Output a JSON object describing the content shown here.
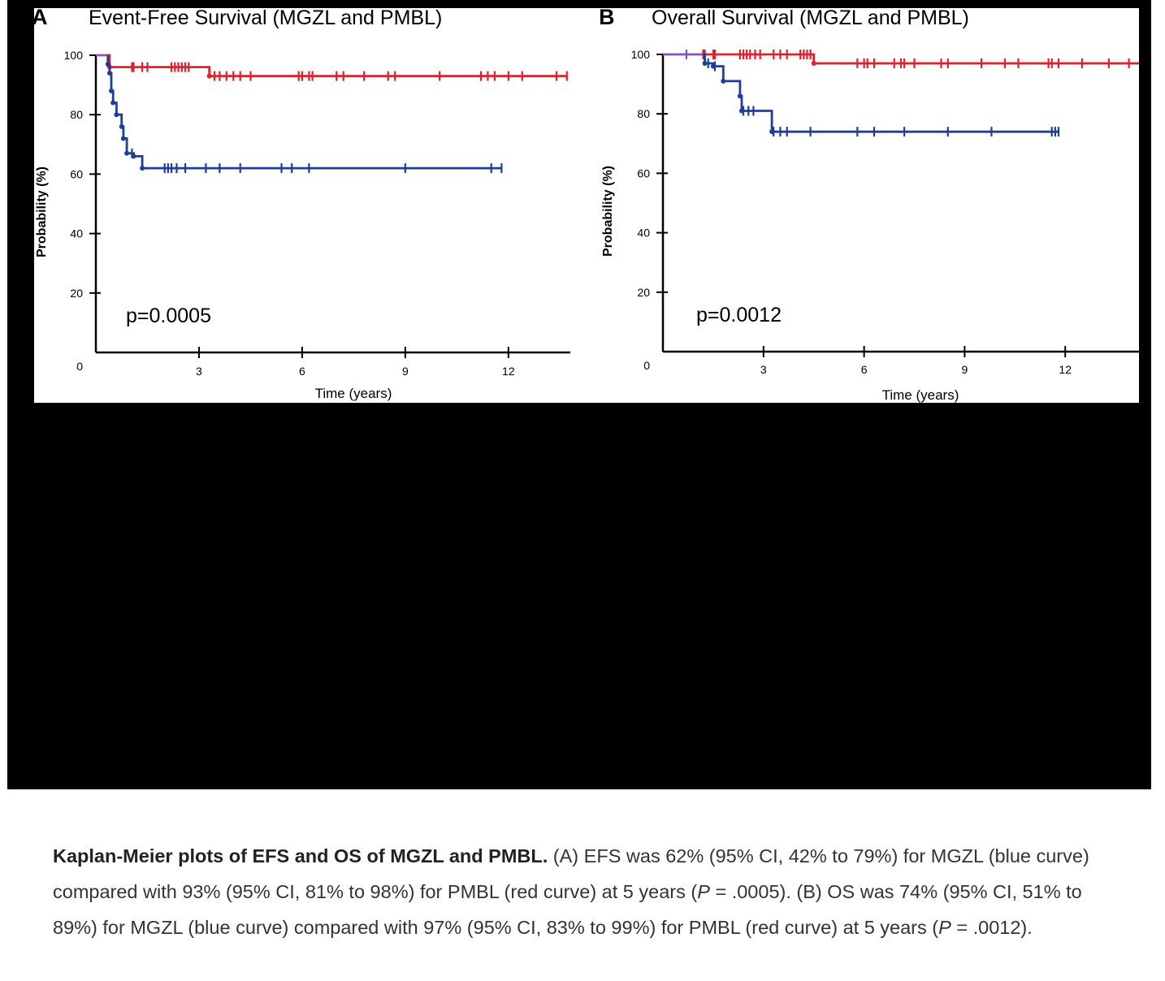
{
  "figure": {
    "background": "#000000",
    "colors": {
      "pmbl": "#e0212c",
      "mgzl": "#1f3d99",
      "combined": "#8a4fb8",
      "axis": "#000000"
    }
  },
  "chart_data": [
    {
      "type": "line",
      "panel_letter": "A",
      "title": "Event-Free Survival (MGZL and PMBL)",
      "xlabel": "Time (years)",
      "ylabel": "Probability (%)",
      "xlim": [
        0,
        13.8
      ],
      "ylim": [
        0,
        100
      ],
      "xticks": [
        3,
        6,
        9,
        12
      ],
      "yticks": [
        0,
        20,
        40,
        60,
        80,
        100
      ],
      "x_tick_labels": [
        "3",
        "6",
        "9",
        "12"
      ],
      "y_tick_labels": [
        "0",
        "20",
        "40",
        "60",
        "80",
        "100"
      ],
      "annotation": "p=0.0005",
      "step_plot": true,
      "series": [
        {
          "color": "#8a4fb8",
          "points": [
            [
              0,
              100
            ],
            [
              0.4,
              100
            ]
          ],
          "censored": []
        },
        {
          "color": "#e0212c",
          "points": [
            [
              0.35,
              100
            ],
            [
              0.4,
              96
            ],
            [
              3.3,
              96
            ],
            [
              3.3,
              93
            ],
            [
              13.7,
              93
            ]
          ],
          "censored": [
            1.05,
            1.1,
            1.35,
            1.5,
            2.2,
            2.3,
            2.4,
            2.5,
            2.6,
            2.7,
            3.45,
            3.6,
            3.8,
            4.0,
            4.2,
            4.5,
            5.9,
            6.0,
            6.2,
            6.3,
            7.0,
            7.2,
            7.8,
            8.5,
            8.7,
            10.0,
            11.2,
            11.4,
            11.6,
            12.0,
            12.4,
            13.4,
            13.7
          ]
        },
        {
          "color": "#1f3d99",
          "points": [
            [
              0.35,
              100
            ],
            [
              0.35,
              97
            ],
            [
              0.4,
              94
            ],
            [
              0.45,
              88
            ],
            [
              0.5,
              84
            ],
            [
              0.6,
              80
            ],
            [
              0.75,
              76
            ],
            [
              0.8,
              72
            ],
            [
              0.9,
              67
            ],
            [
              1.1,
              66
            ],
            [
              1.35,
              62
            ],
            [
              11.8,
              62
            ]
          ],
          "censored": [
            1.05,
            2.0,
            2.1,
            2.2,
            2.35,
            2.6,
            3.2,
            3.6,
            4.2,
            5.4,
            5.7,
            6.2,
            9.0,
            11.5,
            11.8
          ]
        }
      ]
    },
    {
      "type": "line",
      "panel_letter": "B",
      "title": "Overall Survival (MGZL and PMBL)",
      "xlabel": "Time (years)",
      "ylabel": "Probability (%)",
      "xlim": [
        0,
        14.2
      ],
      "ylim": [
        0,
        100
      ],
      "xticks": [
        3,
        6,
        9,
        12
      ],
      "yticks": [
        0,
        20,
        40,
        60,
        80,
        100
      ],
      "x_tick_labels": [
        "3",
        "6",
        "9",
        "12"
      ],
      "y_tick_labels": [
        "0",
        "20",
        "40",
        "60",
        "80",
        "100"
      ],
      "annotation": "p=0.0012",
      "step_plot": true,
      "series": [
        {
          "color": "#8a4fb8",
          "points": [
            [
              0,
              100
            ],
            [
              1.2,
              100
            ]
          ],
          "censored": [
            0.7
          ]
        },
        {
          "color": "#e0212c",
          "points": [
            [
              1.2,
              100
            ],
            [
              4.5,
              100
            ],
            [
              4.5,
              97
            ],
            [
              14.2,
              97
            ]
          ],
          "censored": [
            1.2,
            1.25,
            1.5,
            1.55,
            2.3,
            2.4,
            2.5,
            2.6,
            2.75,
            2.9,
            3.3,
            3.5,
            3.7,
            4.1,
            4.2,
            4.3,
            4.4,
            5.8,
            6.0,
            6.1,
            6.3,
            6.9,
            7.1,
            7.2,
            7.5,
            8.3,
            8.5,
            9.5,
            10.2,
            10.6,
            11.5,
            11.6,
            11.8,
            12.5,
            13.3,
            13.9
          ]
        },
        {
          "color": "#1f3d99",
          "points": [
            [
              1.2,
              100
            ],
            [
              1.25,
              97
            ],
            [
              1.5,
              96
            ],
            [
              1.8,
              91
            ],
            [
              2.2,
              91
            ],
            [
              2.3,
              86
            ],
            [
              2.35,
              81
            ],
            [
              3.2,
              81
            ],
            [
              3.25,
              74
            ],
            [
              11.8,
              74
            ]
          ],
          "censored": [
            1.35,
            1.55,
            2.4,
            2.55,
            2.7,
            3.3,
            3.5,
            3.7,
            4.4,
            5.8,
            6.3,
            7.2,
            8.5,
            9.8,
            11.6,
            11.7,
            11.8
          ]
        }
      ]
    }
  ],
  "caption": {
    "bold": "Kaplan-Meier plots of EFS and OS of MGZL and PMBL.",
    "seg1": " (A) EFS was 62% (95% CI, 42% to 79%) for MGZL (blue curve) compared with 93% (95% CI, 81% to 98%) for PMBL (red curve) at 5 years (",
    "italic1": "P",
    "seg2": " = .0005). (B) OS was 74% (95% CI, 51% to 89%) for MGZL (blue curve) compared with 97% (95% CI, 83% to 99%) for PMBL (red curve) at 5 years (",
    "italic2": "P",
    "seg3": " = .0012)."
  }
}
